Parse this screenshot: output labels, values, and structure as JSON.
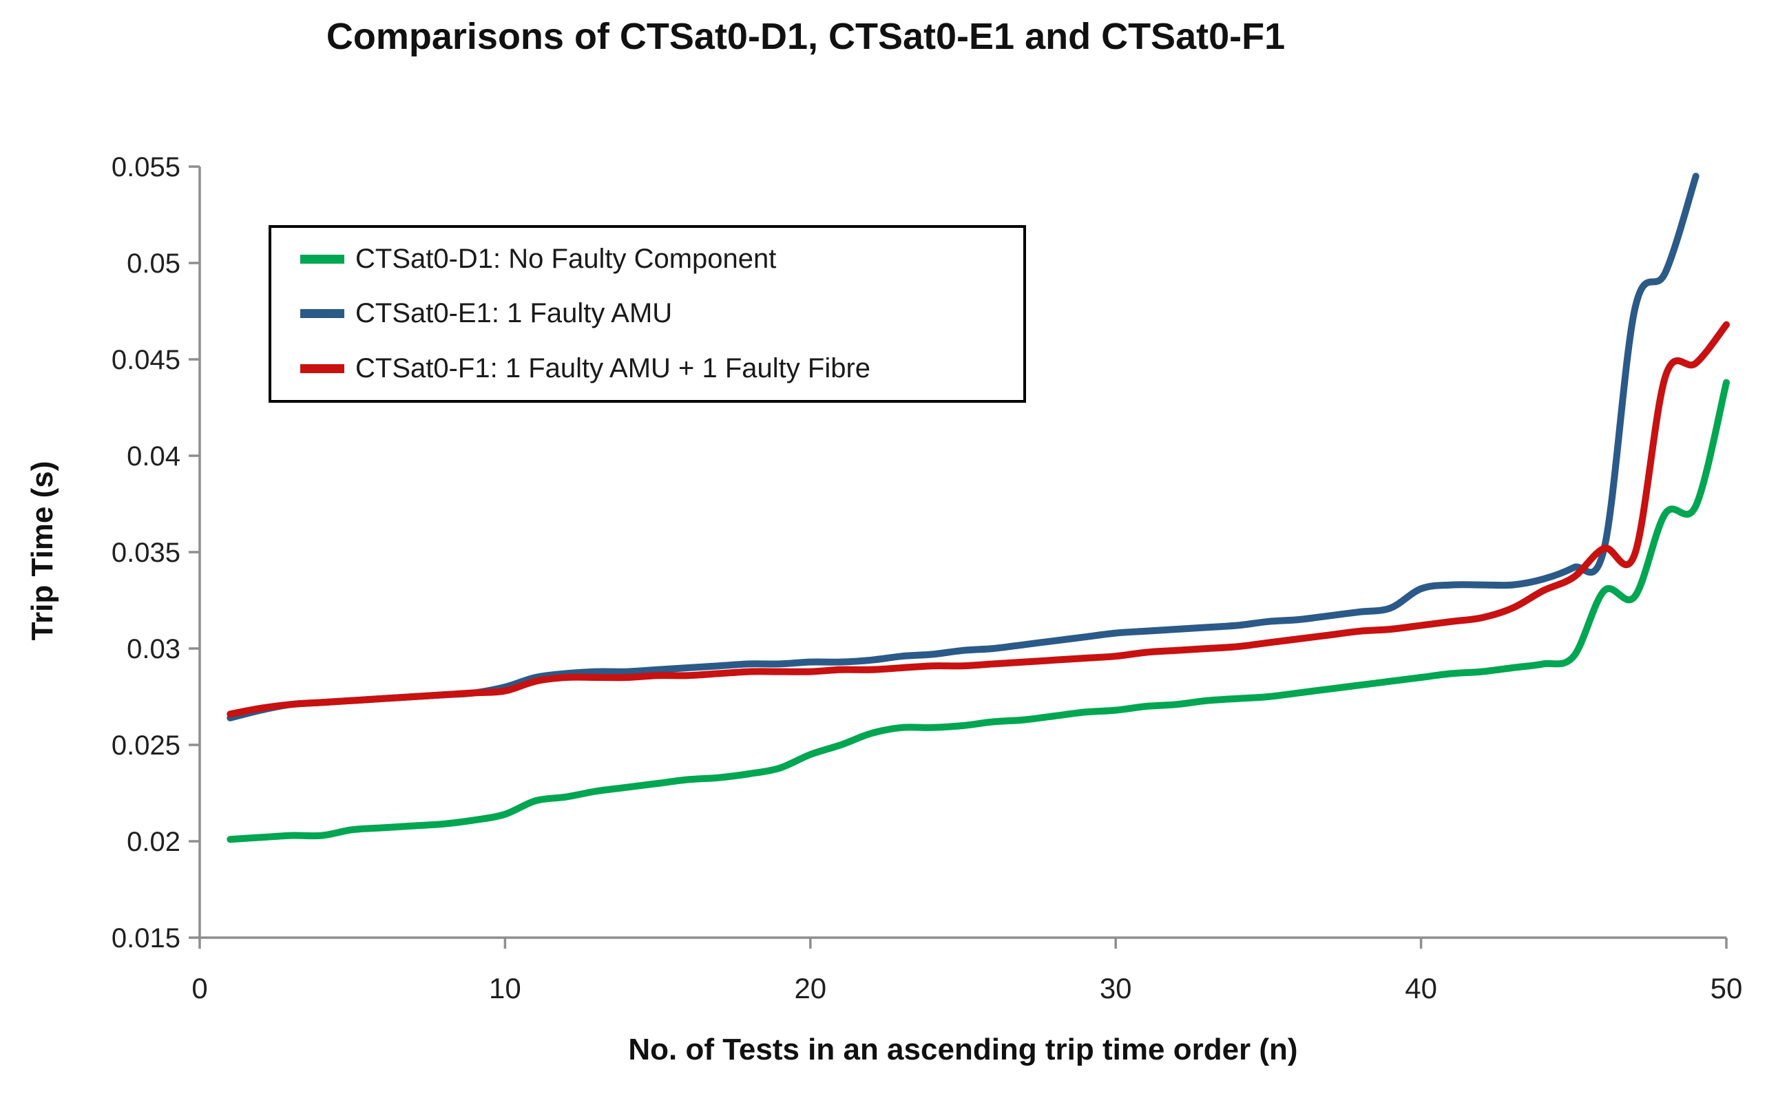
{
  "chart_data": {
    "type": "line",
    "title": "Comparisons of CTSat0-D1, CTSat0-E1 and CTSat0-F1",
    "xlabel": "No. of Tests in an ascending trip time order (n)",
    "ylabel": "Trip Time (s)",
    "xlim": [
      0,
      50
    ],
    "ylim": [
      0.015,
      0.055
    ],
    "x_ticks": [
      0,
      10,
      20,
      30,
      40,
      50
    ],
    "y_ticks": [
      "0.055",
      "0.05",
      "0.045",
      "0.04",
      "0.035",
      "0.03",
      "0.025",
      "0.02",
      "0.015"
    ],
    "grid": false,
    "legend_position": "top-left-inside",
    "axis_color": "#8E8E8E",
    "text_color": "#1f1f1f",
    "x_range_note": "each series has points at n = 1..50 (CTSat0-E1 line ends at n = 49)",
    "series": [
      {
        "name": "CTSat0-D1: No Faulty Component",
        "color": "#00A651",
        "values": [
          0.0201,
          0.0202,
          0.0203,
          0.0203,
          0.0206,
          0.0207,
          0.0208,
          0.0209,
          0.0211,
          0.0214,
          0.0221,
          0.0223,
          0.0226,
          0.0228,
          0.023,
          0.0232,
          0.0233,
          0.0235,
          0.0238,
          0.0245,
          0.025,
          0.0256,
          0.0259,
          0.0259,
          0.026,
          0.0262,
          0.0263,
          0.0265,
          0.0267,
          0.0268,
          0.027,
          0.0271,
          0.0273,
          0.0274,
          0.0275,
          0.0277,
          0.0279,
          0.0281,
          0.0283,
          0.0285,
          0.0287,
          0.0288,
          0.029,
          0.0292,
          0.0296,
          0.033,
          0.0327,
          0.037,
          0.0374,
          0.0438
        ]
      },
      {
        "name": "CTSat0-E1: 1 Faulty AMU",
        "color": "#2B5A88",
        "values": [
          0.0264,
          0.0268,
          0.0271,
          0.0272,
          0.0273,
          0.0274,
          0.0275,
          0.0276,
          0.0277,
          0.028,
          0.0285,
          0.0287,
          0.0288,
          0.0288,
          0.0289,
          0.029,
          0.0291,
          0.0292,
          0.0292,
          0.0293,
          0.0293,
          0.0294,
          0.0296,
          0.0297,
          0.0299,
          0.03,
          0.0302,
          0.0304,
          0.0306,
          0.0308,
          0.0309,
          0.031,
          0.0311,
          0.0312,
          0.0314,
          0.0315,
          0.0317,
          0.0319,
          0.0321,
          0.0331,
          0.0333,
          0.0333,
          0.0333,
          0.0336,
          0.0342,
          0.0352,
          0.0476,
          0.0495,
          0.0545
        ]
      },
      {
        "name": "CTSat0-F1: 1 Faulty AMU + 1 Faulty Fibre",
        "color": "#C81111",
        "values": [
          0.0266,
          0.0269,
          0.0271,
          0.0272,
          0.0273,
          0.0274,
          0.0275,
          0.0276,
          0.0277,
          0.0278,
          0.0283,
          0.0285,
          0.0285,
          0.0285,
          0.0286,
          0.0286,
          0.0287,
          0.0288,
          0.0288,
          0.0288,
          0.0289,
          0.0289,
          0.029,
          0.0291,
          0.0291,
          0.0292,
          0.0293,
          0.0294,
          0.0295,
          0.0296,
          0.0298,
          0.0299,
          0.03,
          0.0301,
          0.0303,
          0.0305,
          0.0307,
          0.0309,
          0.031,
          0.0312,
          0.0314,
          0.0316,
          0.0321,
          0.033,
          0.0337,
          0.0352,
          0.0349,
          0.0441,
          0.0448,
          0.0468
        ]
      }
    ]
  }
}
